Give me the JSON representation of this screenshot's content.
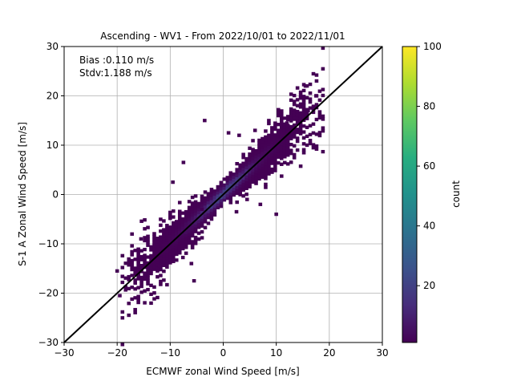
{
  "chart_data": {
    "type": "heatmap",
    "title": "Ascending - WV1 - From 2022/10/01 to 2022/11/01",
    "xlabel": "ECMWF zonal Wind Speed [m/s]",
    "ylabel": "S-1 A Zonal Wind Speed [m/s]",
    "xlim": [
      -30,
      30
    ],
    "ylim": [
      -30,
      30
    ],
    "x_ticks": [
      -30,
      -20,
      -10,
      0,
      10,
      20,
      30
    ],
    "y_ticks": [
      -30,
      -20,
      -10,
      0,
      10,
      20,
      30
    ],
    "grid": true,
    "annotations": [
      "Bias :0.110 m/s",
      "Stdv:1.188 m/s"
    ],
    "reference_line": {
      "from": [
        -30,
        -30
      ],
      "to": [
        30,
        30
      ],
      "color": "#000000"
    },
    "colorbar": {
      "label": "count",
      "range": [
        1,
        100
      ],
      "ticks": [
        20,
        40,
        60,
        80,
        100
      ],
      "colormap": "viridis"
    },
    "bin_size": 0.6,
    "density": {
      "bias": 0.11,
      "stdv": 1.188,
      "x_range": [
        -19,
        19
      ],
      "peak_count": 25
    },
    "outliers": [
      [
        -3.5,
        15
      ],
      [
        -7.5,
        6.5
      ],
      [
        -9.5,
        2.5
      ],
      [
        3,
        12
      ],
      [
        6,
        13
      ],
      [
        15.5,
        22
      ],
      [
        17.5,
        20
      ],
      [
        16,
        17
      ],
      [
        10,
        -4
      ],
      [
        7,
        -2
      ],
      [
        -5.5,
        -17.5
      ],
      [
        -12,
        -14.5
      ],
      [
        -19.5,
        -20.5
      ],
      [
        -20,
        -15.5
      ],
      [
        -15.5,
        -9
      ],
      [
        1,
        12.5
      ],
      [
        12,
        14.5
      ],
      [
        4.5,
        -1
      ],
      [
        13.5,
        15.5
      ],
      [
        -6,
        -14
      ],
      [
        -4,
        -3
      ],
      [
        2.5,
        -3.5
      ]
    ]
  }
}
